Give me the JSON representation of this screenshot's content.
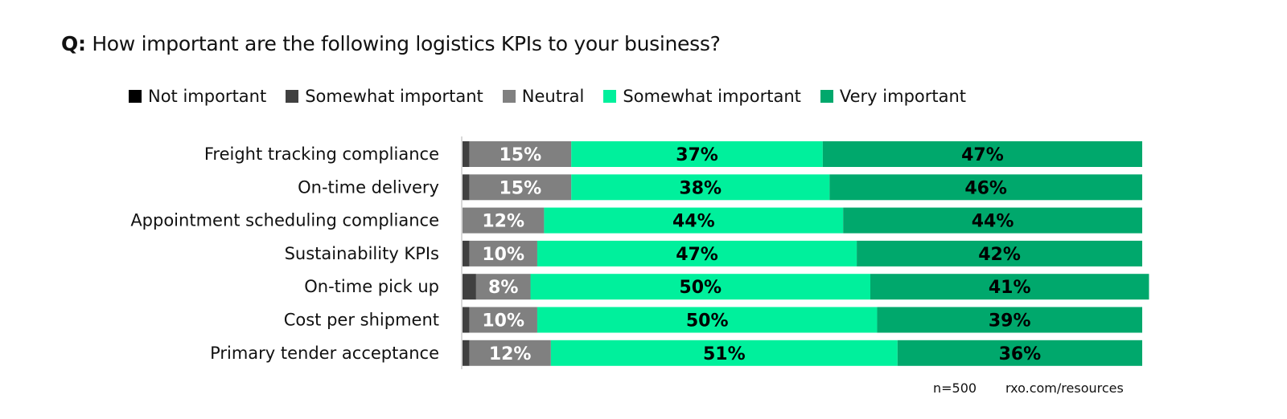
{
  "chart_data": {
    "type": "bar",
    "orientation": "horizontal",
    "stacked": true,
    "title_prefix": "Q:",
    "title": "How important are the following logistics KPIs to your business?",
    "categories": [
      "Freight tracking compliance",
      "On-time delivery",
      "Appointment scheduling compliance",
      "Sustainability KPIs",
      "On-time pick up",
      "Cost per shipment",
      "Primary tender acceptance"
    ],
    "series": [
      {
        "name": "Not important",
        "color": "#000000",
        "values": [
          0,
          0,
          0,
          0,
          0,
          0,
          0
        ]
      },
      {
        "name": "Somewhat important",
        "color": "#404040",
        "values": [
          1,
          1,
          0,
          1,
          2,
          1,
          1
        ]
      },
      {
        "name": "Neutral",
        "color": "#808080",
        "values": [
          15,
          15,
          12,
          10,
          8,
          10,
          12
        ]
      },
      {
        "name": "Somewhat important",
        "color": "#00F09C",
        "values": [
          37,
          38,
          44,
          47,
          50,
          50,
          51
        ]
      },
      {
        "name": "Very important",
        "color": "#00A86C",
        "values": [
          47,
          46,
          44,
          42,
          41,
          39,
          36
        ]
      }
    ],
    "label_colors": [
      "#ffffff",
      "#ffffff",
      "#ffffff",
      "#000000",
      "#000000"
    ],
    "xlim": [
      0,
      100
    ],
    "legend_position": "top",
    "grid": false
  },
  "footer": {
    "n": "n=500",
    "source": "rxo.com/resources"
  }
}
